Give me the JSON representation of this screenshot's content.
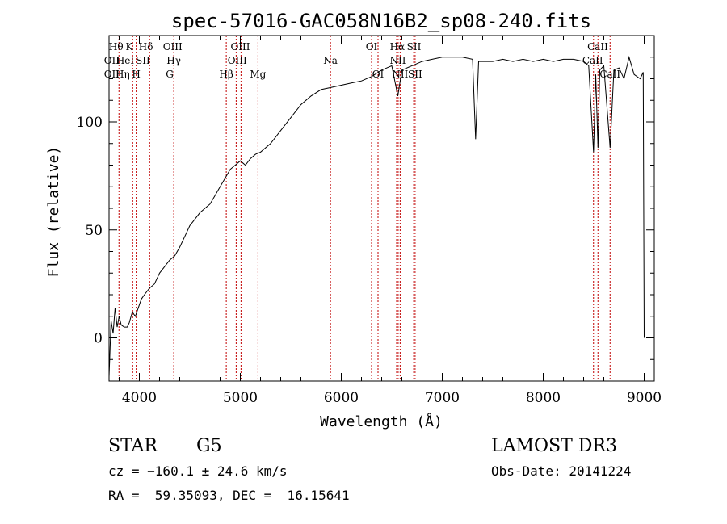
{
  "chart_data": {
    "type": "line",
    "title": "spec-57016-GAC058N16B2_sp08-240.fits",
    "xlabel": "Wavelength (Å)",
    "ylabel": "Flux (relative)",
    "xlim": [
      3700,
      9100
    ],
    "ylim": [
      -20,
      140
    ],
    "xticks": [
      4000,
      5000,
      6000,
      7000,
      8000,
      9000
    ],
    "yticks": [
      0,
      50,
      100
    ],
    "grid": false,
    "line_color": "#000000",
    "marker_color": "#c00000",
    "series": [
      {
        "x": [
          3700,
          3720,
          3740,
          3760,
          3780,
          3800,
          3820,
          3850,
          3880,
          3900,
          3930,
          3960,
          3990,
          4020,
          4050,
          4100,
          4150,
          4200,
          4250,
          4300,
          4350,
          4400,
          4450,
          4500,
          4550,
          4600,
          4650,
          4700,
          4750,
          4800,
          4850,
          4900,
          4950,
          5000,
          5050,
          5100,
          5150,
          5200,
          5300,
          5400,
          5500,
          5600,
          5700,
          5800,
          5900,
          6000,
          6100,
          6200,
          6300,
          6400,
          6500,
          6560,
          6600,
          6700,
          6800,
          6900,
          7000,
          7100,
          7200,
          7300,
          7330,
          7360,
          7400,
          7500,
          7600,
          7700,
          7800,
          7900,
          8000,
          8100,
          8200,
          8300,
          8400,
          8450,
          8498,
          8520,
          8542,
          8560,
          8600,
          8662,
          8700,
          8750,
          8800,
          8850,
          8900,
          8960,
          8990,
          9000
        ],
        "y": [
          -18,
          8,
          2,
          14,
          5,
          10,
          6,
          5,
          5,
          7,
          12,
          10,
          14,
          18,
          20,
          23,
          25,
          30,
          33,
          36,
          38,
          42,
          47,
          52,
          55,
          58,
          60,
          62,
          66,
          70,
          74,
          78,
          80,
          82,
          80,
          83,
          85,
          86,
          90,
          96,
          102,
          108,
          112,
          115,
          116,
          117,
          118,
          119,
          121,
          124,
          126,
          112,
          124,
          126,
          128,
          129,
          130,
          130,
          130,
          129,
          92,
          128,
          128,
          128,
          129,
          128,
          129,
          128,
          129,
          128,
          129,
          129,
          128,
          126,
          86,
          122,
          88,
          124,
          126,
          88,
          124,
          125,
          120,
          130,
          122,
          120,
          123,
          0
        ]
      }
    ],
    "lines": [
      {
        "name": "Hθ",
        "x": 3798
      },
      {
        "name": "K",
        "x": 3934
      },
      {
        "name": "H",
        "x": 3969
      },
      {
        "name": "Hδ",
        "x": 4102
      },
      {
        "name": "Hγ",
        "x": 4341
      },
      {
        "name": "Hβ",
        "x": 4861
      },
      {
        "name": "OIII",
        "x": 4959
      },
      {
        "name": "OIII",
        "x": 5007
      },
      {
        "name": "Mg",
        "x": 5175
      },
      {
        "name": "Na",
        "x": 5893
      },
      {
        "name": "OI",
        "x": 6300
      },
      {
        "name": "OI",
        "x": 6364
      },
      {
        "name": "NII",
        "x": 6548
      },
      {
        "name": "Hα",
        "x": 6563
      },
      {
        "name": "NII",
        "x": 6583
      },
      {
        "name": "SII",
        "x": 6717
      },
      {
        "name": "SII",
        "x": 6731
      },
      {
        "name": "CaII",
        "x": 8498
      },
      {
        "name": "CaII",
        "x": 8542
      },
      {
        "name": "CaII",
        "x": 8662
      }
    ],
    "line_labels": [
      {
        "text": "Hθ",
        "row": 0,
        "x": 3770
      },
      {
        "text": "K",
        "row": 0,
        "x": 3900
      },
      {
        "text": "Hδ",
        "row": 0,
        "x": 4065
      },
      {
        "text": "OIII",
        "row": 0,
        "x": 4330
      },
      {
        "text": "OIII",
        "row": 0,
        "x": 5000
      },
      {
        "text": "OI",
        "row": 0,
        "x": 6300
      },
      {
        "text": "Hα",
        "row": 0,
        "x": 6555
      },
      {
        "text": "SII",
        "row": 0,
        "x": 6720
      },
      {
        "text": "CaII",
        "row": 0,
        "x": 8540
      },
      {
        "text": "OII",
        "row": 1,
        "x": 3727
      },
      {
        "text": "HeI",
        "row": 1,
        "x": 3860
      },
      {
        "text": "SII",
        "row": 1,
        "x": 4035
      },
      {
        "text": "Hγ",
        "row": 1,
        "x": 4341
      },
      {
        "text": "OIII",
        "row": 1,
        "x": 4970
      },
      {
        "text": "Na",
        "row": 1,
        "x": 5893
      },
      {
        "text": "NII",
        "row": 1,
        "x": 6560
      },
      {
        "text": "CaII",
        "row": 1,
        "x": 8490
      },
      {
        "text": "OII",
        "row": 2,
        "x": 3727
      },
      {
        "text": "Hη",
        "row": 2,
        "x": 3835
      },
      {
        "text": "H",
        "row": 2,
        "x": 3969
      },
      {
        "text": "G",
        "row": 2,
        "x": 4300
      },
      {
        "text": "Hβ",
        "row": 2,
        "x": 4861
      },
      {
        "text": "Mg",
        "row": 2,
        "x": 5175
      },
      {
        "text": "OI",
        "row": 2,
        "x": 6364
      },
      {
        "text": "NII",
        "row": 2,
        "x": 6583
      },
      {
        "text": "SII",
        "row": 2,
        "x": 6731
      },
      {
        "text": "CaII",
        "row": 2,
        "x": 8662
      }
    ]
  },
  "info": {
    "object_class": "STAR",
    "subclass": "G5",
    "survey": "LAMOST DR3",
    "redshift": "cz = −160.1 ± 24.6 km/s",
    "obs_date": "Obs-Date: 20141224",
    "coords": "RA =  59.35093, DEC =  16.15641"
  }
}
